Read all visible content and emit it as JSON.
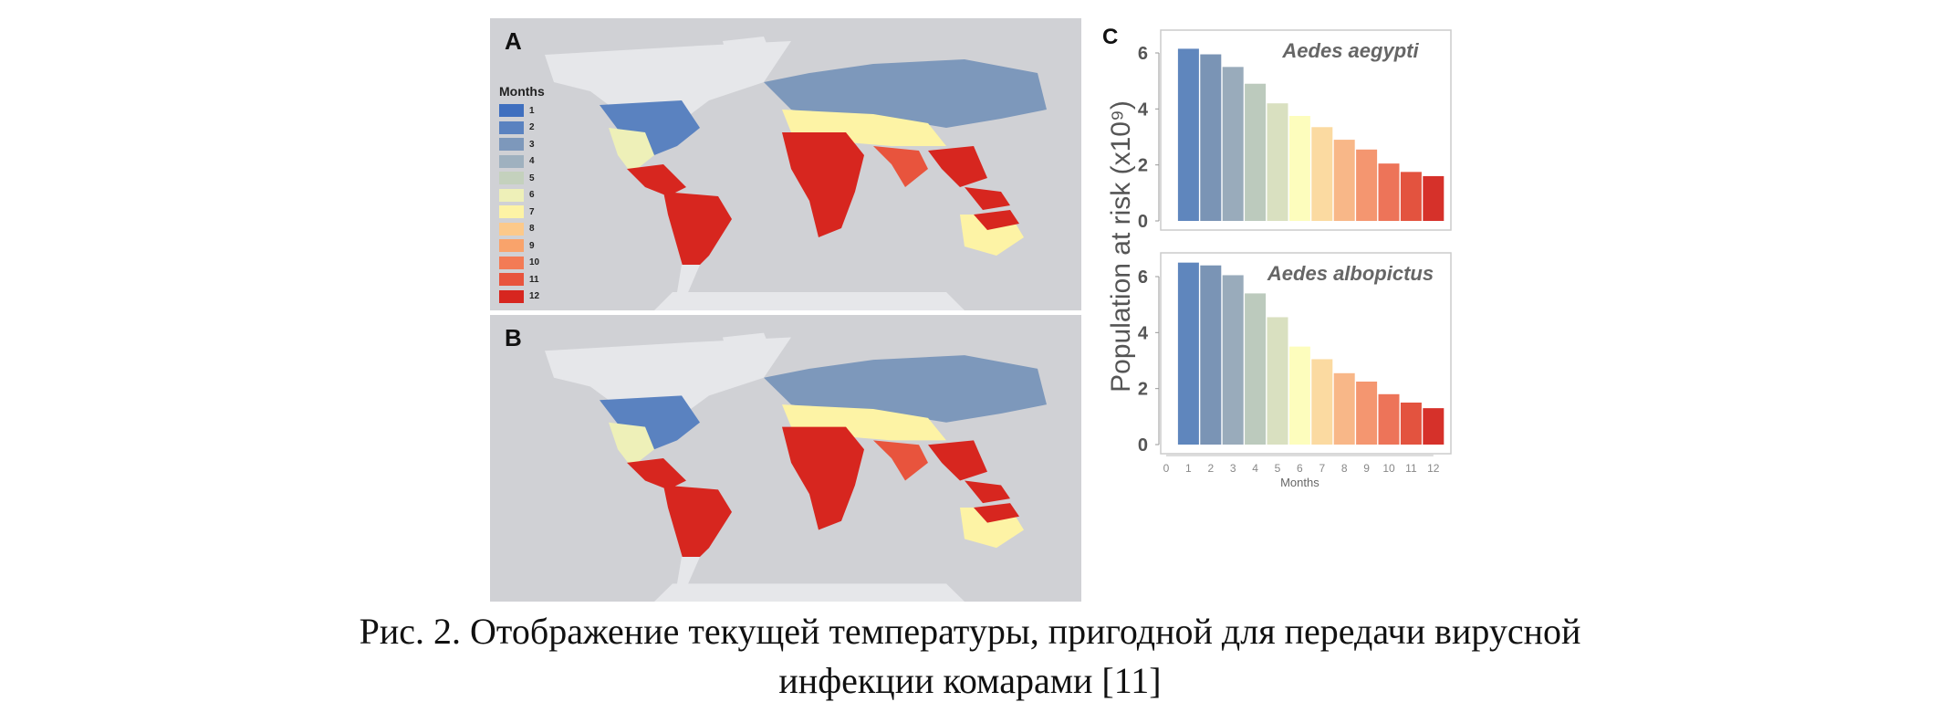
{
  "maps": [
    {
      "label": "A"
    },
    {
      "label": "B"
    }
  ],
  "legend": {
    "title": "Months",
    "items": [
      "1",
      "2",
      "3",
      "4",
      "5",
      "6",
      "7",
      "8",
      "9",
      "10",
      "11",
      "12"
    ],
    "colors": [
      "#3f6fbf",
      "#5a82c0",
      "#7d98bb",
      "#9fb1bf",
      "#c4d1bd",
      "#eef0b8",
      "#fdf3a5",
      "#fcc98a",
      "#f9a36b",
      "#f37b55",
      "#e8543d",
      "#d7261f"
    ]
  },
  "chart_data": [
    {
      "type": "bar",
      "panel_label": "C",
      "title": "Aedes aegypti",
      "categories": [
        1,
        2,
        3,
        4,
        5,
        6,
        7,
        8,
        9,
        10,
        11,
        12
      ],
      "values": [
        6.15,
        5.95,
        5.5,
        4.9,
        4.2,
        3.75,
        3.35,
        2.9,
        2.55,
        2.05,
        1.75,
        1.6
      ],
      "colors": [
        "#5f86bd",
        "#7a94b5",
        "#99abbb",
        "#bccabd",
        "#d9e0c0",
        "#fdfdbd",
        "#fbdaa1",
        "#f8b788",
        "#f49670",
        "#ed7459",
        "#e3533f",
        "#d6312a"
      ],
      "ylabel": "Population at risk (x10⁹)",
      "yticks": [
        "0",
        "2",
        "4",
        "6"
      ],
      "ylim": [
        0,
        6.8
      ]
    },
    {
      "type": "bar",
      "title": "Aedes albopictus",
      "categories": [
        1,
        2,
        3,
        4,
        5,
        6,
        7,
        8,
        9,
        10,
        11,
        12
      ],
      "values": [
        6.5,
        6.4,
        6.05,
        5.4,
        4.55,
        3.5,
        3.05,
        2.55,
        2.25,
        1.8,
        1.5,
        1.3
      ],
      "colors": [
        "#5f86bd",
        "#7a94b5",
        "#99abbb",
        "#bccabd",
        "#d9e0c0",
        "#fdfdbd",
        "#fbdaa1",
        "#f8b788",
        "#f49670",
        "#ed7459",
        "#e3533f",
        "#d6312a"
      ],
      "xlabel": "Months",
      "xticks": [
        "0",
        "1",
        "2",
        "3",
        "4",
        "5",
        "6",
        "7",
        "8",
        "9",
        "10",
        "11",
        "12"
      ],
      "yticks": [
        "0",
        "2",
        "4",
        "6"
      ],
      "ylim": [
        0,
        6.8
      ]
    }
  ],
  "caption": {
    "line1": "Рис. 2. Отображение текущей температуры, пригодной для передачи вирусной",
    "line2": "инфекции комарами [11]"
  }
}
